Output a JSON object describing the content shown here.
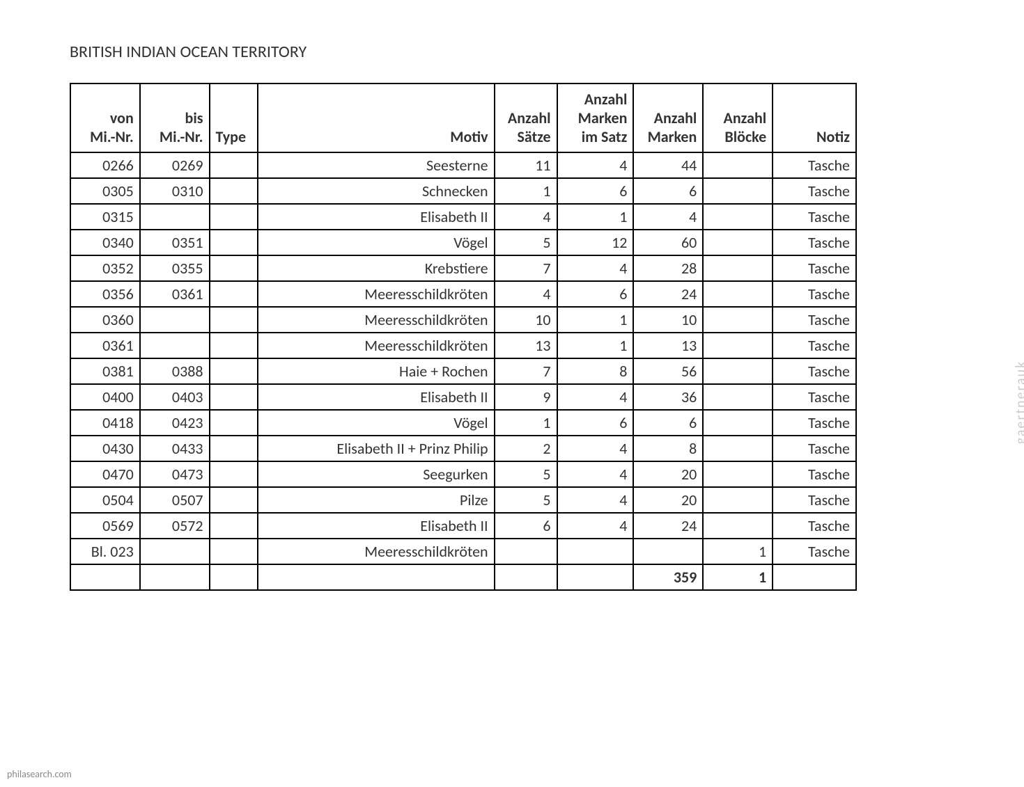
{
  "title": "BRITISH INDIAN OCEAN TERRITORY",
  "headers": {
    "von": "von Mi.-Nr.",
    "bis": "bis Mi.-Nr.",
    "type": "Type",
    "motiv": "Motiv",
    "saetze": "Anzahl Sätze",
    "marken_satz": "Anzahl Marken im Satz",
    "marken": "Anzahl Marken",
    "bloecke": "Anzahl Blöcke",
    "notiz": "Notiz"
  },
  "rows": [
    {
      "von": "0266",
      "bis": "0269",
      "type": "",
      "motiv": "Seesterne",
      "saetze": "11",
      "marken_satz": "4",
      "marken": "44",
      "bloecke": "",
      "notiz": "Tasche"
    },
    {
      "von": "0305",
      "bis": "0310",
      "type": "",
      "motiv": "Schnecken",
      "saetze": "1",
      "marken_satz": "6",
      "marken": "6",
      "bloecke": "",
      "notiz": "Tasche"
    },
    {
      "von": "0315",
      "bis": "",
      "type": "",
      "motiv": "Elisabeth II",
      "saetze": "4",
      "marken_satz": "1",
      "marken": "4",
      "bloecke": "",
      "notiz": "Tasche"
    },
    {
      "von": "0340",
      "bis": "0351",
      "type": "",
      "motiv": "Vögel",
      "saetze": "5",
      "marken_satz": "12",
      "marken": "60",
      "bloecke": "",
      "notiz": "Tasche"
    },
    {
      "von": "0352",
      "bis": "0355",
      "type": "",
      "motiv": "Krebstiere",
      "saetze": "7",
      "marken_satz": "4",
      "marken": "28",
      "bloecke": "",
      "notiz": "Tasche"
    },
    {
      "von": "0356",
      "bis": "0361",
      "type": "",
      "motiv": "Meeresschildkröten",
      "saetze": "4",
      "marken_satz": "6",
      "marken": "24",
      "bloecke": "",
      "notiz": "Tasche"
    },
    {
      "von": "0360",
      "bis": "",
      "type": "",
      "motiv": "Meeresschildkröten",
      "saetze": "10",
      "marken_satz": "1",
      "marken": "10",
      "bloecke": "",
      "notiz": "Tasche"
    },
    {
      "von": "0361",
      "bis": "",
      "type": "",
      "motiv": "Meeresschildkröten",
      "saetze": "13",
      "marken_satz": "1",
      "marken": "13",
      "bloecke": "",
      "notiz": "Tasche"
    },
    {
      "von": "0381",
      "bis": "0388",
      "type": "",
      "motiv": "Haie + Rochen",
      "saetze": "7",
      "marken_satz": "8",
      "marken": "56",
      "bloecke": "",
      "notiz": "Tasche"
    },
    {
      "von": "0400",
      "bis": "0403",
      "type": "",
      "motiv": "Elisabeth II",
      "saetze": "9",
      "marken_satz": "4",
      "marken": "36",
      "bloecke": "",
      "notiz": "Tasche"
    },
    {
      "von": "0418",
      "bis": "0423",
      "type": "",
      "motiv": "Vögel",
      "saetze": "1",
      "marken_satz": "6",
      "marken": "6",
      "bloecke": "",
      "notiz": "Tasche"
    },
    {
      "von": "0430",
      "bis": "0433",
      "type": "",
      "motiv": "Elisabeth II + Prinz Philip",
      "saetze": "2",
      "marken_satz": "4",
      "marken": "8",
      "bloecke": "",
      "notiz": "Tasche"
    },
    {
      "von": "0470",
      "bis": "0473",
      "type": "",
      "motiv": "Seegurken",
      "saetze": "5",
      "marken_satz": "4",
      "marken": "20",
      "bloecke": "",
      "notiz": "Tasche"
    },
    {
      "von": "0504",
      "bis": "0507",
      "type": "",
      "motiv": "Pilze",
      "saetze": "5",
      "marken_satz": "4",
      "marken": "20",
      "bloecke": "",
      "notiz": "Tasche"
    },
    {
      "von": "0569",
      "bis": "0572",
      "type": "",
      "motiv": "Elisabeth II",
      "saetze": "6",
      "marken_satz": "4",
      "marken": "24",
      "bloecke": "",
      "notiz": "Tasche"
    },
    {
      "von": "Bl. 023",
      "bis": "",
      "type": "",
      "motiv": "Meeresschildkröten",
      "saetze": "",
      "marken_satz": "",
      "marken": "",
      "bloecke": "1",
      "notiz": "Tasche"
    }
  ],
  "totals": {
    "marken": "359",
    "bloecke": "1"
  },
  "watermark_left": "philasearch.com",
  "watermark_right": "gaertnerauk"
}
